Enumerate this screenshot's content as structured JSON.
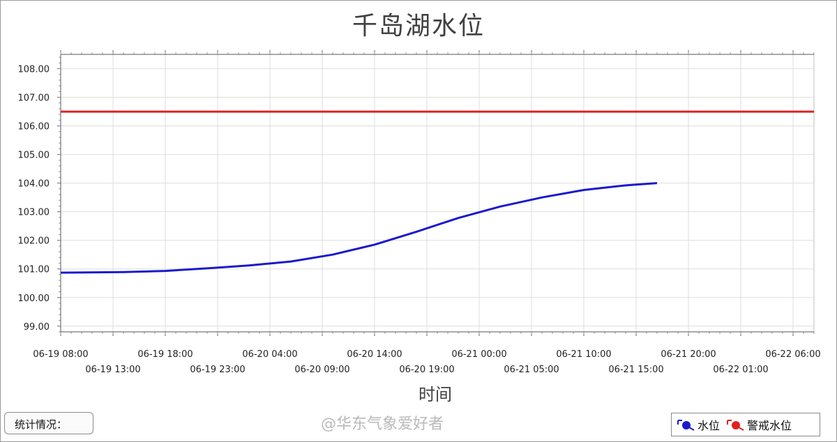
{
  "chart_data": {
    "type": "line",
    "title": "千岛湖水位",
    "xlabel": "时间",
    "ylabel": "",
    "ylim": [
      98.8,
      108.5
    ],
    "yticks": [
      "99.00",
      "100.00",
      "101.00",
      "102.00",
      "103.00",
      "104.00",
      "105.00",
      "106.00",
      "107.00",
      "108.00"
    ],
    "xrange": [
      "2024-06-19 08:00",
      "2024-06-22 08:00"
    ],
    "xticks_upper": [
      "06-19 08:00",
      "06-19 18:00",
      "06-20 04:00",
      "06-20 14:00",
      "06-21 00:00",
      "06-21 10:00",
      "06-21 20:00",
      "06-22 06:00"
    ],
    "xticks_lower": [
      "06-19 13:00",
      "06-19 23:00",
      "06-20 09:00",
      "06-20 19:00",
      "06-21 05:00",
      "06-21 15:00",
      "06-22 01:00"
    ],
    "grid": true,
    "legend_position": "bottom-right",
    "series": [
      {
        "name": "水位",
        "color": "#1a1acc",
        "x": [
          "2024-06-19 08:00",
          "2024-06-19 14:00",
          "2024-06-19 18:00",
          "2024-06-19 22:00",
          "2024-06-20 02:00",
          "2024-06-20 06:00",
          "2024-06-20 10:00",
          "2024-06-20 14:00",
          "2024-06-20 18:00",
          "2024-06-20 22:00",
          "2024-06-21 02:00",
          "2024-06-21 06:00",
          "2024-06-21 10:00",
          "2024-06-21 14:00",
          "2024-06-21 17:00"
        ],
        "values": [
          100.87,
          100.89,
          100.93,
          101.02,
          101.12,
          101.26,
          101.5,
          101.85,
          102.3,
          102.78,
          103.18,
          103.5,
          103.76,
          103.92,
          104.0
        ]
      },
      {
        "name": "警戒水位",
        "color": "#dd2222",
        "x": [
          "2024-06-19 08:00",
          "2024-06-22 08:00"
        ],
        "values": [
          106.5,
          106.5
        ]
      }
    ]
  },
  "stats_label": "统计情况：",
  "watermark": "@华东气象爱好者"
}
